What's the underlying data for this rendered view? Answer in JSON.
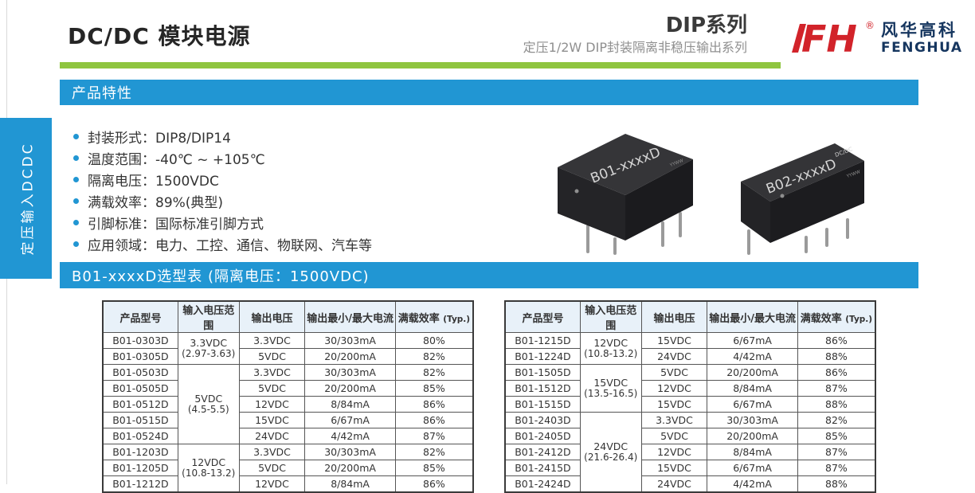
{
  "page": {
    "title": "DC/DC 模块电源",
    "series": {
      "name": "DIP系列",
      "subtitle": "定压1/2W DIP封装隔离非稳压输出系列"
    },
    "logo": {
      "mark": "FH",
      "reg": "®",
      "cn": "风华高科",
      "en": "FENGHUA"
    }
  },
  "colors": {
    "accent_blue": "#2196d3",
    "accent_green": "#8fc53f",
    "table_header_bg": "#e8f1f9",
    "logo_red": "#d2232a",
    "logo_navy": "#16365f"
  },
  "side_tab": {
    "label": "定压输入DCDC"
  },
  "sections": {
    "features_title": "产品特性",
    "selection_title": "B01-xxxxD选型表 (隔离电压：1500VDC)"
  },
  "features": [
    "封装形式：DIP8/DIP14",
    "温度范围：-40℃ ~ +105℃",
    "隔离电压：1500VDC",
    "满载效率：89%(典型)",
    "引脚标准：国际标准引脚方式",
    "应用领域：电力、工控、通信、物联网、汽车等"
  ],
  "product_images": {
    "left_label": "B01-xxxxD",
    "right_label": "B02-xxxxD",
    "right_sublabel": "DC/DC"
  },
  "table_headers": {
    "model": "产品型号",
    "input_range": "输入电压范围",
    "output_voltage": "输出电压",
    "output_current": "输出最小/最大电流",
    "efficiency": "满载效率",
    "efficiency_suffix": "(Typ.)"
  },
  "tables": {
    "left": {
      "groups": [
        {
          "input": "3.3VDC",
          "range": "(2.97-3.63)",
          "rows": [
            {
              "model": "B01-0303D",
              "vout": "3.3VDC",
              "current": "30/303mA",
              "eff": "80%"
            },
            {
              "model": "B01-0305D",
              "vout": "5VDC",
              "current": "20/200mA",
              "eff": "82%"
            }
          ]
        },
        {
          "input": "5VDC",
          "range": "(4.5-5.5)",
          "rows": [
            {
              "model": "B01-0503D",
              "vout": "3.3VDC",
              "current": "30/303mA",
              "eff": "82%"
            },
            {
              "model": "B01-0505D",
              "vout": "5VDC",
              "current": "20/200mA",
              "eff": "85%"
            },
            {
              "model": "B01-0512D",
              "vout": "12VDC",
              "current": "8/84mA",
              "eff": "86%"
            },
            {
              "model": "B01-0515D",
              "vout": "15VDC",
              "current": "6/67mA",
              "eff": "86%"
            },
            {
              "model": "B01-0524D",
              "vout": "24VDC",
              "current": "4/42mA",
              "eff": "87%"
            }
          ]
        },
        {
          "input": "12VDC",
          "range": "(10.8-13.2)",
          "rows": [
            {
              "model": "B01-1203D",
              "vout": "3.3VDC",
              "current": "30/303mA",
              "eff": "82%"
            },
            {
              "model": "B01-1205D",
              "vout": "5VDC",
              "current": "20/200mA",
              "eff": "85%"
            },
            {
              "model": "B01-1212D",
              "vout": "12VDC",
              "current": "8/84mA",
              "eff": "86%"
            }
          ]
        }
      ]
    },
    "right": {
      "groups": [
        {
          "input": "12VDC",
          "range": "(10.8-13.2)",
          "rows": [
            {
              "model": "B01-1215D",
              "vout": "15VDC",
              "current": "6/67mA",
              "eff": "86%"
            },
            {
              "model": "B01-1224D",
              "vout": "24VDC",
              "current": "4/42mA",
              "eff": "88%"
            }
          ]
        },
        {
          "input": "15VDC",
          "range": "(13.5-16.5)",
          "rows": [
            {
              "model": "B01-1505D",
              "vout": "5VDC",
              "current": "20/200mA",
              "eff": "86%"
            },
            {
              "model": "B01-1512D",
              "vout": "12VDC",
              "current": "8/84mA",
              "eff": "87%"
            },
            {
              "model": "B01-1515D",
              "vout": "15VDC",
              "current": "6/67mA",
              "eff": "88%"
            }
          ]
        },
        {
          "input": "24VDC",
          "range": "(21.6-26.4)",
          "rows": [
            {
              "model": "B01-2403D",
              "vout": "3.3VDC",
              "current": "30/303mA",
              "eff": "82%"
            },
            {
              "model": "B01-2405D",
              "vout": "5VDC",
              "current": "20/200mA",
              "eff": "85%"
            },
            {
              "model": "B01-2412D",
              "vout": "12VDC",
              "current": "8/84mA",
              "eff": "87%"
            },
            {
              "model": "B01-2415D",
              "vout": "15VDC",
              "current": "6/67mA",
              "eff": "87%"
            },
            {
              "model": "B01-2424D",
              "vout": "24VDC",
              "current": "4/42mA",
              "eff": "88%"
            }
          ]
        }
      ]
    }
  }
}
